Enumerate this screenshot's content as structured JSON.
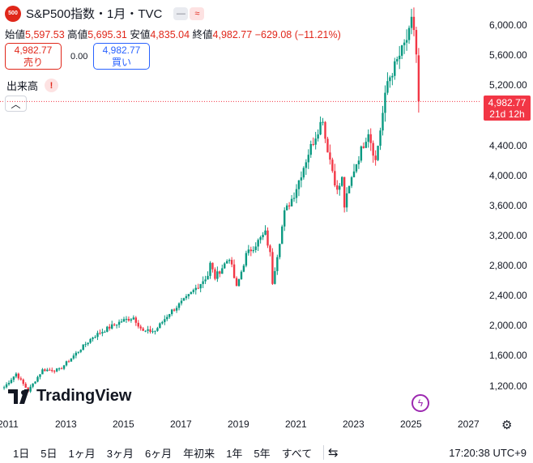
{
  "header": {
    "symbol_badge": "500",
    "title": "S&P500指数・1月・TVC",
    "pill_icons": [
      "minus-icon",
      "wave-icon"
    ]
  },
  "ohlc": {
    "open_label": "始値",
    "open": "5,597.53",
    "high_label": "高値",
    "high": "5,695.31",
    "low_label": "安値",
    "low": "4,835.04",
    "close_label": "終値",
    "close": "4,982.77",
    "change": "−629.08 (−11.21%)"
  },
  "trade": {
    "sell_price": "4,982.77",
    "sell_label": "売り",
    "spread": "0.00",
    "buy_price": "4,982.77",
    "buy_label": "買い"
  },
  "volume_label": "出来高",
  "price_axis": {
    "ticks": [
      "6,000.00",
      "5,600.00",
      "5,200.00",
      "4,400.00",
      "4,000.00",
      "3,600.00",
      "3,200.00",
      "2,800.00",
      "2,400.00",
      "2,000.00",
      "1,600.00",
      "1,200.00"
    ],
    "current_price": "4,982.77",
    "countdown": "21d 12h"
  },
  "time_axis": {
    "ticks": [
      "2011",
      "2013",
      "2015",
      "2017",
      "2019",
      "2021",
      "2023",
      "2025",
      "2027"
    ]
  },
  "logo_text": "TradingView",
  "bottom": {
    "ranges": [
      "1日",
      "5日",
      "1ヶ月",
      "3ヶ月",
      "6ヶ月",
      "年初来",
      "1年",
      "5年",
      "すべて"
    ],
    "clock": "17:20:38 UTC+9"
  },
  "colors": {
    "up": "#089981",
    "down": "#f23645",
    "accent": "#2962ff"
  },
  "chart_data": {
    "type": "candlestick",
    "interval": "1M",
    "ylim": [
      1000,
      6150
    ],
    "x_range": [
      "2011-01",
      "2027-06"
    ],
    "series_anchor_points": [
      [
        "2010-11",
        1180
      ],
      [
        "2011-04",
        1360
      ],
      [
        "2011-09",
        1130
      ],
      [
        "2012-03",
        1410
      ],
      [
        "2012-10",
        1410
      ],
      [
        "2013-05",
        1630
      ],
      [
        "2013-12",
        1850
      ],
      [
        "2014-06",
        1960
      ],
      [
        "2014-12",
        2060
      ],
      [
        "2015-05",
        2110
      ],
      [
        "2015-09",
        1920
      ],
      [
        "2016-02",
        1930
      ],
      [
        "2016-08",
        2170
      ],
      [
        "2017-03",
        2360
      ],
      [
        "2017-12",
        2670
      ],
      [
        "2018-01",
        2820
      ],
      [
        "2018-03",
        2640
      ],
      [
        "2018-09",
        2910
      ],
      [
        "2018-12",
        2500
      ],
      [
        "2019-04",
        2940
      ],
      [
        "2019-12",
        3230
      ],
      [
        "2020-02",
        2950
      ],
      [
        "2020-03",
        2580
      ],
      [
        "2020-08",
        3500
      ],
      [
        "2020-12",
        3750
      ],
      [
        "2021-06",
        4300
      ],
      [
        "2021-12",
        4770
      ],
      [
        "2022-01",
        4500
      ],
      [
        "2022-06",
        3780
      ],
      [
        "2022-08",
        3950
      ],
      [
        "2022-09",
        3590
      ],
      [
        "2023-01",
        4080
      ],
      [
        "2023-07",
        4590
      ],
      [
        "2023-10",
        4190
      ],
      [
        "2024-03",
        5250
      ],
      [
        "2024-07",
        5520
      ],
      [
        "2024-12",
        5880
      ],
      [
        "2025-01",
        6040
      ],
      [
        "2025-02",
        5950
      ],
      [
        "2025-03",
        5610
      ],
      [
        "2025-04",
        4983
      ]
    ],
    "last_candle": {
      "open": 5597.53,
      "high": 5695.31,
      "low": 4835.04,
      "close": 4982.77
    }
  }
}
